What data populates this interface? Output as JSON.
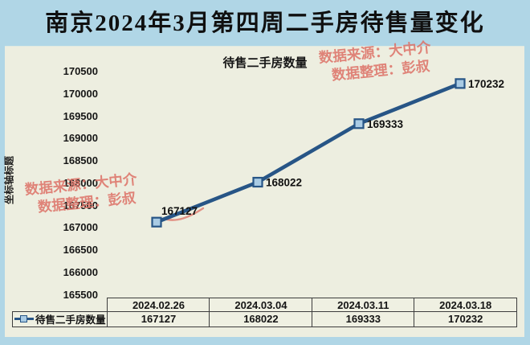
{
  "window": {
    "title": "南京2024年3月第四周二手房待售量变化"
  },
  "chart_data": {
    "type": "line",
    "title": "待售二手房数量",
    "categories": [
      "2024.02.26",
      "2024.03.04",
      "2024.03.11",
      "2024.03.18"
    ],
    "series": [
      {
        "name": "待售二手房数量",
        "values": [
          167127,
          168022,
          169333,
          170232
        ]
      }
    ],
    "data_labels": [
      "167127",
      "168022",
      "169333",
      "170232"
    ],
    "xlabel": "",
    "ylabel": "坐标轴标题",
    "ylim": [
      165500,
      170500
    ],
    "ytick_step": 500,
    "y_ticks": [
      "170500",
      "170000",
      "169500",
      "169000",
      "168500",
      "168000",
      "167500",
      "167000",
      "166500",
      "166000",
      "165500"
    ],
    "grid": false,
    "legend_position": "bottom-table",
    "line_color": "#275586",
    "marker_fill": "#a9cbe4"
  },
  "watermarks": {
    "color": "#dd7166",
    "top_right": {
      "line1": "数据来源：大中介",
      "line2": "数据整理：彭叔"
    },
    "left": {
      "line1": "数据来源：大中介",
      "line2": "数据整理：彭叔"
    }
  },
  "table": {
    "legend_label": "待售二手房数量",
    "dates": [
      "2024.02.26",
      "2024.03.04",
      "2024.03.11",
      "2024.03.18"
    ],
    "values": [
      "167127",
      "168022",
      "169333",
      "170232"
    ]
  },
  "colors": {
    "title_bg": "#b0d6e6",
    "panel_bg": "#edeee0",
    "line": "#275586",
    "marker_fill": "#a9cbe4",
    "watermark_red": "#dd7166",
    "table_border": "#3d3d3d",
    "text": "#141414"
  }
}
